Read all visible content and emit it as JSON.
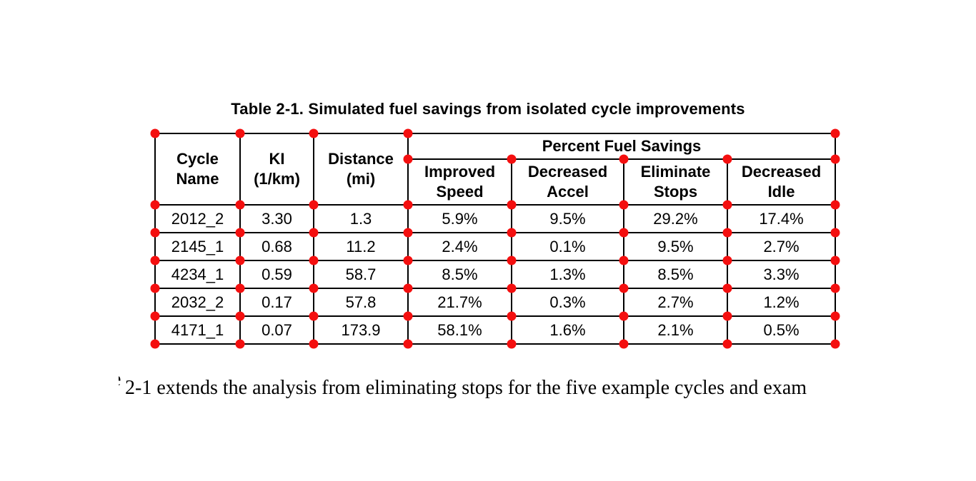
{
  "caption": "Table 2-1. Simulated fuel savings from isolated cycle improvements",
  "table": {
    "left_headers": {
      "cycle_name": "Cycle\nName",
      "ki": "KI\n(1/km)",
      "distance": "Distance\n(mi)"
    },
    "group_header": "Percent Fuel Savings",
    "sub_headers": {
      "improved_speed": "Improved\nSpeed",
      "decreased_accel": "Decreased\nAccel",
      "eliminate_stops": "Eliminate\nStops",
      "decreased_idle": "Decreased\nIdle"
    },
    "rows": [
      [
        "2012_2",
        "3.30",
        "1.3",
        "5.9%",
        "9.5%",
        "29.2%",
        "17.4%"
      ],
      [
        "2145_1",
        "0.68",
        "11.2",
        "2.4%",
        "0.1%",
        "9.5%",
        "2.7%"
      ],
      [
        "4234_1",
        "0.59",
        "58.7",
        "8.5%",
        "1.3%",
        "8.5%",
        "3.3%"
      ],
      [
        "2032_2",
        "0.17",
        "57.8",
        "21.7%",
        "0.3%",
        "2.7%",
        "1.2%"
      ],
      [
        "4171_1",
        "0.07",
        "173.9",
        "58.1%",
        "1.6%",
        "2.1%",
        "0.5%"
      ]
    ]
  },
  "annotations": {
    "marker_name": "grid-intersection-marker",
    "marker_color": "#f40f0f"
  },
  "body_text": {
    "leading_fragment": "e",
    "visible_line": "2-1 extends the analysis from eliminating stops for the five example cycles and exam"
  },
  "colors": {
    "background": "#ffffff",
    "table_border": "#000000",
    "text": "#000000"
  }
}
